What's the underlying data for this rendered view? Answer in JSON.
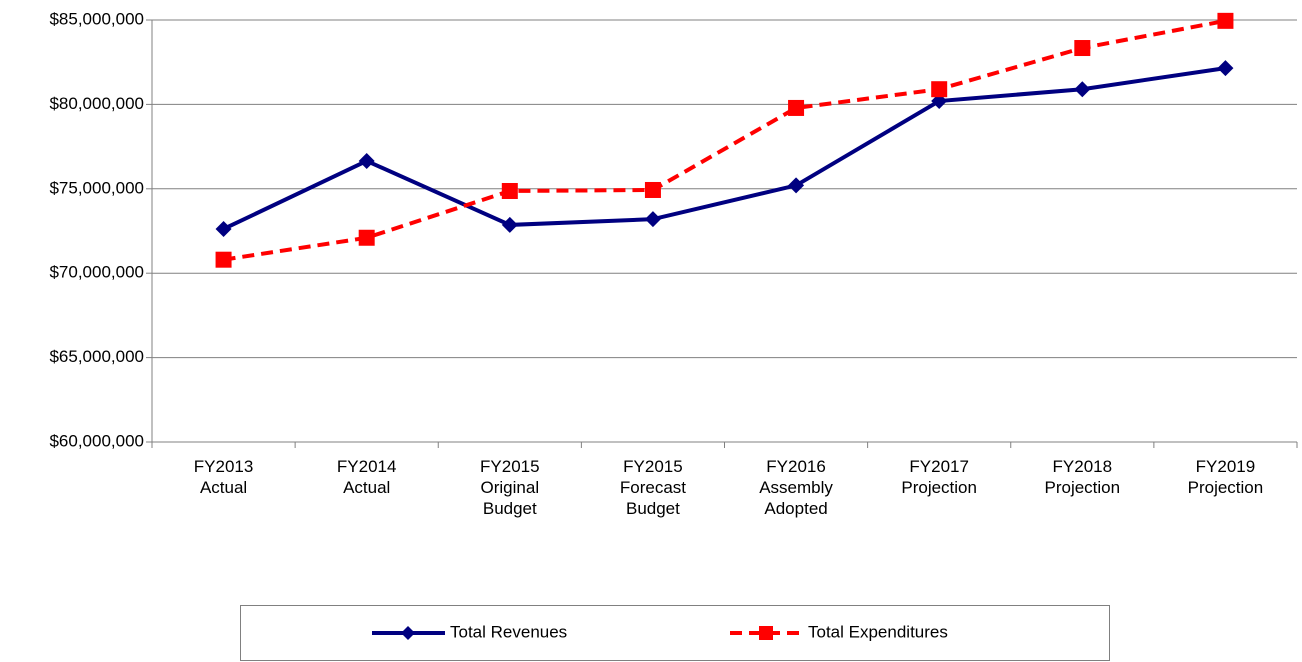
{
  "chart_data": {
    "type": "line",
    "categories": [
      "FY2013 Actual",
      "FY2014 Actual",
      "FY2015 Original Budget",
      "FY2015 Forecast Budget",
      "FY2016 Assembly Adopted",
      "FY2017 Projection",
      "FY2018 Projection",
      "FY2019 Projection"
    ],
    "series": [
      {
        "name": "Total Revenues",
        "color": "#000080",
        "dash": false,
        "marker": "diamond",
        "values": [
          72620000,
          76650000,
          72860000,
          73200000,
          75200000,
          80200000,
          80900000,
          82150000
        ]
      },
      {
        "name": "Total Expenditures",
        "color": "#ff0000",
        "dash": true,
        "marker": "square",
        "values": [
          70800000,
          72100000,
          74870000,
          74930000,
          79790000,
          80900000,
          83340000,
          84950000
        ]
      }
    ],
    "ylim": [
      60000000,
      85000000
    ],
    "yticks": [
      {
        "value": 60000000,
        "label": "$60,000,000"
      },
      {
        "value": 65000000,
        "label": "$65,000,000"
      },
      {
        "value": 70000000,
        "label": "$70,000,000"
      },
      {
        "value": 75000000,
        "label": "$75,000,000"
      },
      {
        "value": 80000000,
        "label": "$80,000,000"
      },
      {
        "value": 85000000,
        "label": "$85,000,000"
      }
    ],
    "grid": true,
    "legend": "bottom"
  }
}
